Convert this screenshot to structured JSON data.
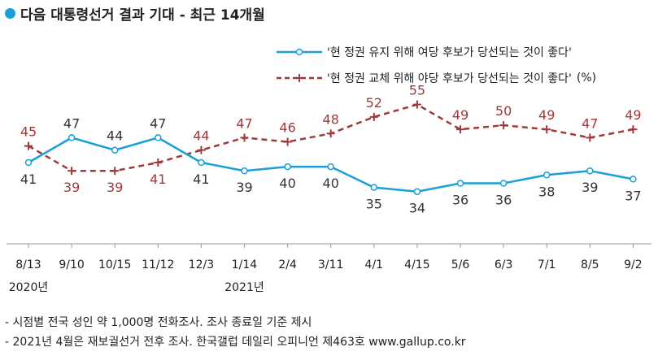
{
  "title": "다음 대통령선거 결과 기대 - 최근 14개월",
  "legend": {
    "blue": "'현 정권 유지 위해 여당 후보가 당선되는 것이 좋다'",
    "red": "'현 정권 교체 위해 야당 후보가 당선되는 것이 좋다'",
    "unit": "(%)"
  },
  "notes": [
    "- 시점별 전국 성인 약 1,000명 전화조사. 조사 종료일 기준 제시",
    "- 2021년 4월은 재보궐선거 전후 조사. 한국갤럽 데일리 오피니언 제463호 www.gallup.co.kr"
  ],
  "colors": {
    "blue": "#1a9fd9",
    "red": "#a0393a",
    "axis": "#999999"
  },
  "chart_data": {
    "type": "line",
    "categories": [
      "8/13",
      "9/10",
      "10/15",
      "11/12",
      "12/3",
      "1/14",
      "2/4",
      "3/11",
      "4/1",
      "4/15",
      "5/6",
      "6/3",
      "7/1",
      "8/5",
      "9/2"
    ],
    "year_labels": [
      {
        "index": 0,
        "label": "2020년"
      },
      {
        "index": 5,
        "label": "2021년"
      }
    ],
    "series": [
      {
        "name": "'현 정권 유지 위해 여당 후보가 당선되는 것이 좋다'",
        "values": [
          41,
          47,
          44,
          47,
          41,
          39,
          40,
          40,
          35,
          34,
          36,
          36,
          38,
          39,
          37
        ]
      },
      {
        "name": "'현 정권 교체 위해 야당 후보가 당선되는 것이 좋다'",
        "values": [
          45,
          39,
          39,
          41,
          44,
          47,
          46,
          48,
          52,
          55,
          49,
          50,
          49,
          47,
          49
        ]
      }
    ],
    "ylabel": "%",
    "grid": false
  }
}
